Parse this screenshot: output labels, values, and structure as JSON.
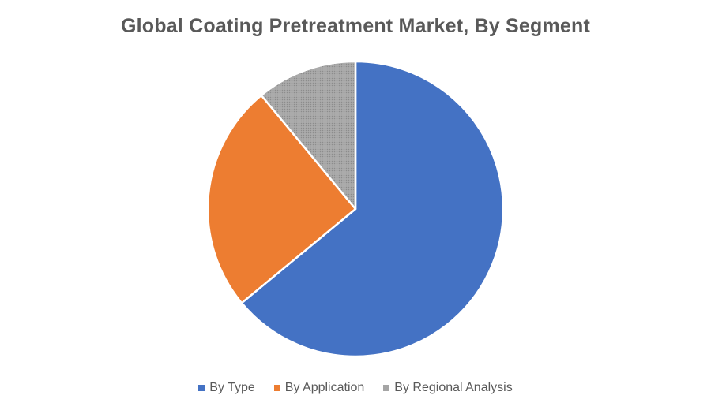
{
  "chart_data": {
    "type": "pie",
    "title": "Global Coating Pretreatment Market, By Segment",
    "categories": [
      "By Type",
      "By Application",
      "By Regional Analysis"
    ],
    "values": [
      64,
      25,
      11
    ],
    "colors": [
      "#4472C4",
      "#ED7D31",
      "#A5A5A5"
    ],
    "legend_position": "bottom"
  }
}
